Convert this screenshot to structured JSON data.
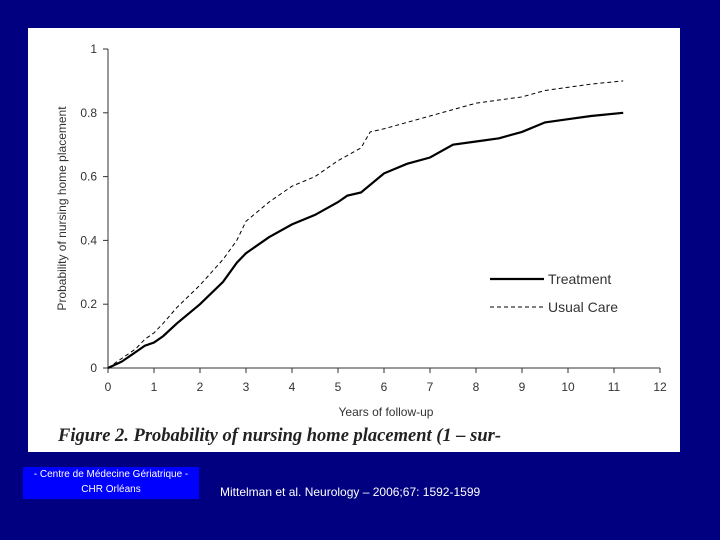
{
  "caption": "Figure 2. Probability of nursing home placement (1 – sur-",
  "footer": {
    "line1": "- Centre de Médecine Gériatrique -",
    "line2": "CHR   Orléans"
  },
  "citation": "Mittelman et al. Neurology – 2006;67: 1592-1599",
  "colors": {
    "background": "#000080",
    "panel": "#ffffff",
    "footer_box": "#0000ff",
    "line": "#000000"
  },
  "chart_data": {
    "type": "line",
    "title": "",
    "xlabel": "Years of follow-up",
    "ylabel": "Probability of nursing home placement",
    "xlim": [
      0,
      12
    ],
    "ylim": [
      0,
      1
    ],
    "x_ticks": [
      "0",
      "1",
      "2",
      "3",
      "4",
      "5",
      "6",
      "7",
      "8",
      "9",
      "10",
      "11",
      "12"
    ],
    "y_ticks": [
      "0",
      "0.2",
      "0.4",
      "0.6",
      "0.8",
      "1"
    ],
    "grid": false,
    "legend_position": "bottom-right",
    "series": [
      {
        "name": "Treatment",
        "style": "solid",
        "x": [
          0,
          0.3,
          0.6,
          0.8,
          1.0,
          1.2,
          1.5,
          2.0,
          2.5,
          2.8,
          3.0,
          3.5,
          4.0,
          4.5,
          5.0,
          5.2,
          5.5,
          6.0,
          6.5,
          7.0,
          7.5,
          8.0,
          8.5,
          9.0,
          9.5,
          10.0,
          10.5,
          11.2
        ],
        "values": [
          0,
          0.02,
          0.05,
          0.07,
          0.08,
          0.1,
          0.14,
          0.2,
          0.27,
          0.33,
          0.36,
          0.41,
          0.45,
          0.48,
          0.52,
          0.54,
          0.55,
          0.61,
          0.64,
          0.66,
          0.7,
          0.71,
          0.72,
          0.74,
          0.77,
          0.78,
          0.79,
          0.8
        ]
      },
      {
        "name": "Usual Care",
        "style": "dashed",
        "x": [
          0,
          0.3,
          0.6,
          0.8,
          1.0,
          1.2,
          1.5,
          2.0,
          2.5,
          2.8,
          3.0,
          3.5,
          4.0,
          4.5,
          5.0,
          5.5,
          5.7,
          6.0,
          6.5,
          7.0,
          7.5,
          8.0,
          8.5,
          9.0,
          9.5,
          10.0,
          10.5,
          11.2
        ],
        "values": [
          0,
          0.03,
          0.06,
          0.09,
          0.11,
          0.14,
          0.19,
          0.26,
          0.34,
          0.4,
          0.46,
          0.52,
          0.57,
          0.6,
          0.65,
          0.69,
          0.74,
          0.75,
          0.77,
          0.79,
          0.81,
          0.83,
          0.84,
          0.85,
          0.87,
          0.88,
          0.89,
          0.9
        ]
      }
    ]
  }
}
